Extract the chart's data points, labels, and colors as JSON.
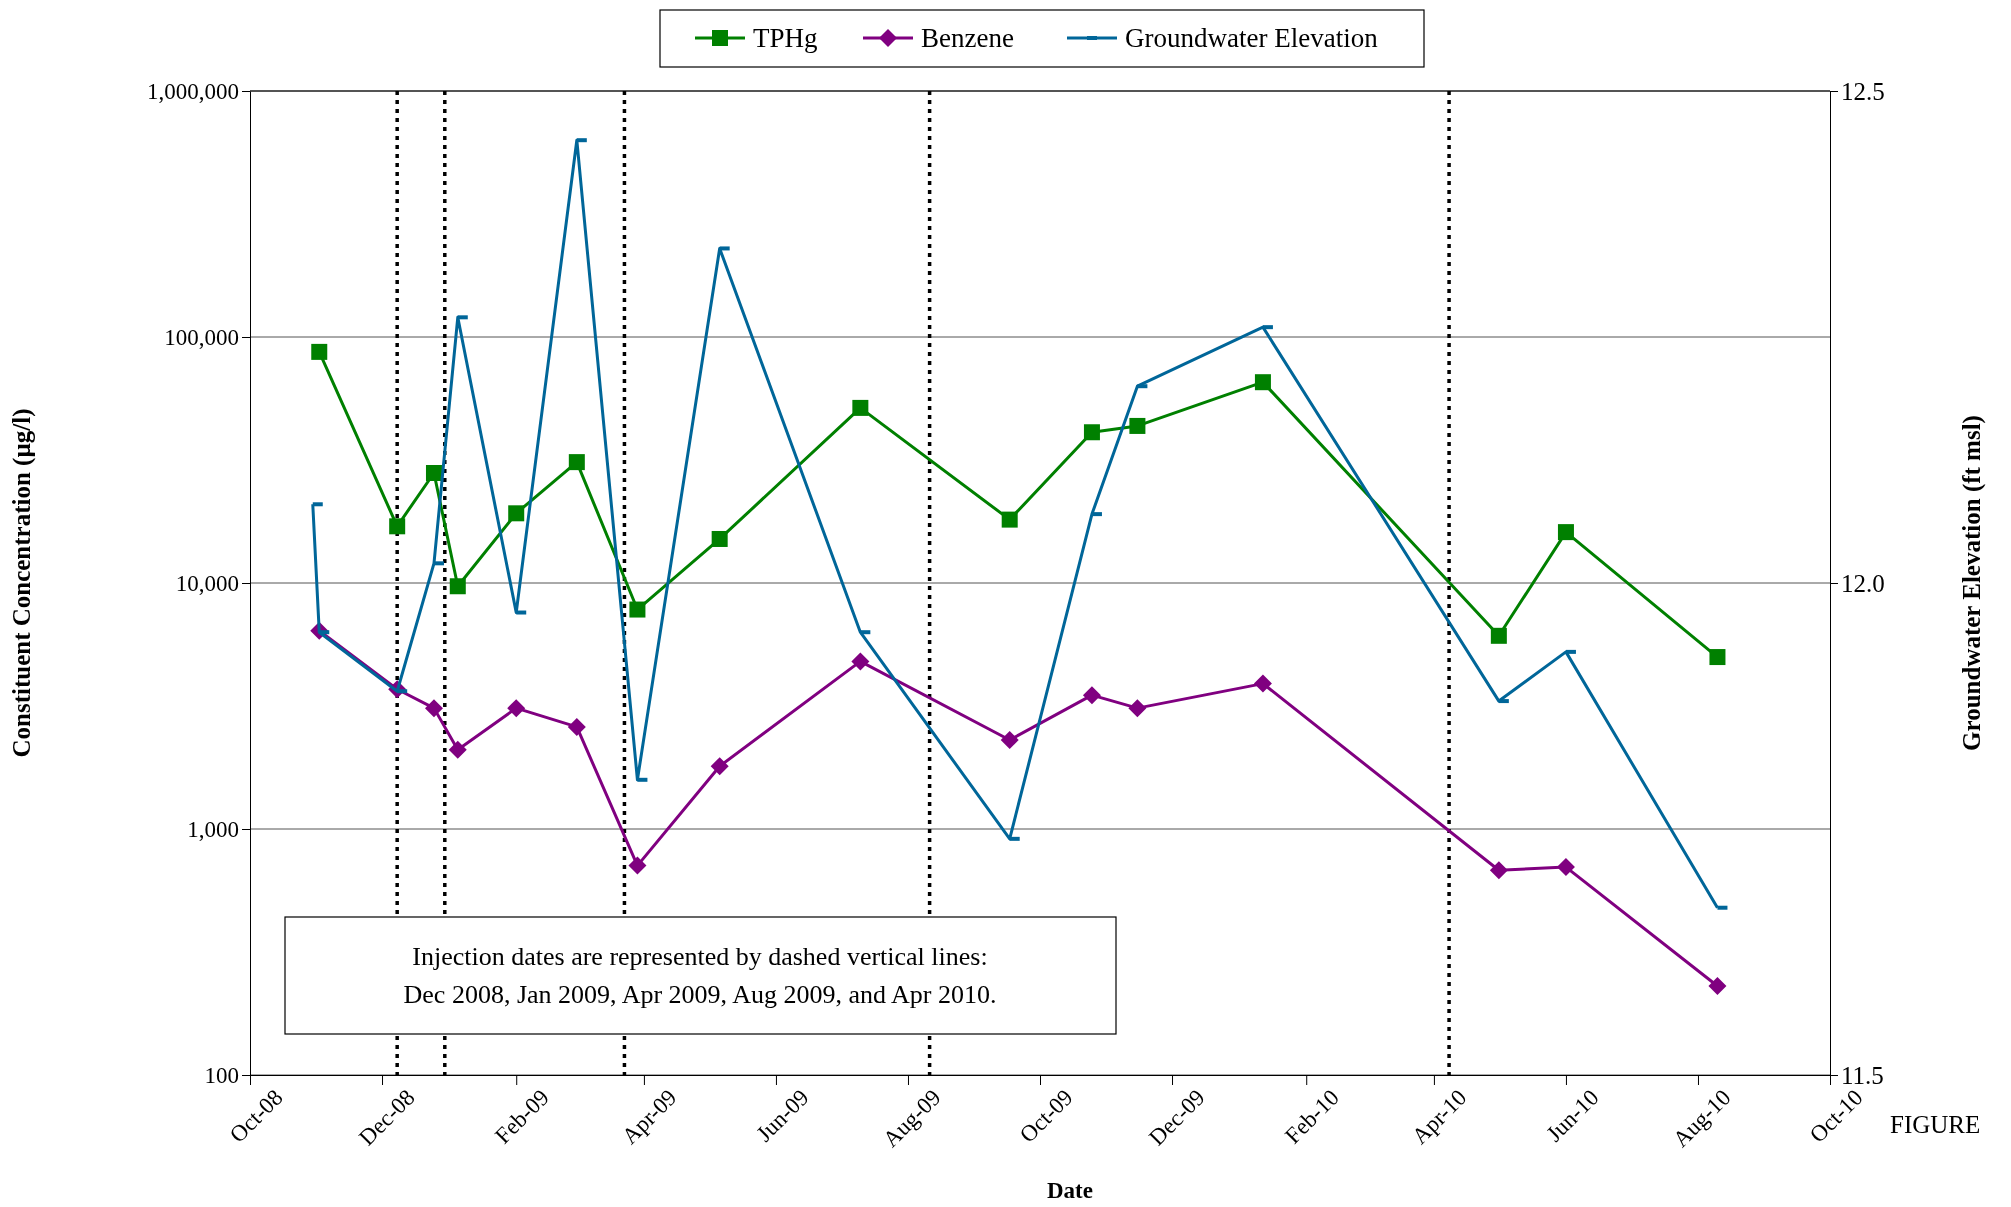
{
  "chart_data": {
    "type": "line",
    "xlabel": "Date",
    "ylabel": "Constituent Concentration (µg/l)",
    "y2label": "Groundwater Elevation (ft msl)",
    "annotations": [
      "Injection dates are represented by dashed vertical lines:\nDec 2008, Jan 2009, Apr 2009, Aug 2009, and Apr 2010.",
      "FIGURE"
    ],
    "log": "y",
    "grid": "y",
    "legend": "top",
    "line_style": "solid",
    "xlim": [
      "2008-10-01",
      "2010-10-01"
    ],
    "xticks": [
      {
        "value": "2008-10-01",
        "label": "Oct-08"
      },
      {
        "value": "2008-12-01",
        "label": "Dec-08"
      },
      {
        "value": "2009-02-01",
        "label": "Feb-09"
      },
      {
        "value": "2009-04-01",
        "label": "Apr-09"
      },
      {
        "value": "2009-06-01",
        "label": "Jun-09"
      },
      {
        "value": "2009-08-01",
        "label": "Aug-09"
      },
      {
        "value": "2009-10-01",
        "label": "Oct-09"
      },
      {
        "value": "2009-12-01",
        "label": "Dec-09"
      },
      {
        "value": "2010-02-01",
        "label": "Feb-10"
      },
      {
        "value": "2010-04-01",
        "label": "Apr-10"
      },
      {
        "value": "2010-06-01",
        "label": "Jun-10"
      },
      {
        "value": "2010-08-01",
        "label": "Aug-10"
      },
      {
        "value": "2010-10-01",
        "label": "Oct-10"
      }
    ],
    "ylim": [
      100,
      1000000
    ],
    "yticks": [
      100,
      {
        "value": 1000,
        "label": "1,000"
      },
      {
        "value": 10000,
        "label": "10,000"
      },
      {
        "value": 100000,
        "label": "100,000"
      },
      {
        "value": 1000000,
        "label": "1,000,000"
      }
    ],
    "y2lim": [
      11.5,
      12.5
    ],
    "y2ticks": [
      11.5,
      {
        "value": 12,
        "label": "12.0"
      },
      12.5
    ],
    "x": [
      "2008-11-02",
      "2008-12-08",
      "2008-12-25",
      "2009-01-05",
      "2009-02-01",
      "2009-03-01",
      "2009-03-29",
      "2009-05-06",
      "2009-07-10",
      "2009-09-17",
      "2009-10-25",
      "2009-11-15",
      "2010-01-12",
      "2010-05-01",
      "2010-06-01",
      "2010-08-10"
    ],
    "series": [
      {
        "name": "TPHg",
        "color": "#008000",
        "marker": "square",
        "values": [
          87000,
          17000,
          28000,
          9700,
          19200,
          31000,
          7800,
          15100,
          51500,
          18100,
          41000,
          43500,
          65500,
          6100,
          16100,
          5000
        ]
      },
      {
        "name": "Benzene",
        "color": "#800080",
        "marker": "diamond",
        "values": [
          6400,
          3700,
          3100,
          2100,
          3100,
          2600,
          710,
          1800,
          4800,
          2300,
          3500,
          3100,
          3900,
          680,
          700,
          230
        ]
      },
      {
        "name": "Groundwater Elevation",
        "color": "#006699",
        "marker": "square",
        "axis": "y2",
        "x": [
          "2008-10-30",
          "2008-11-02",
          "2008-12-08",
          "2008-12-25",
          "2009-01-05",
          "2009-02-01",
          "2009-03-01",
          "2009-03-29",
          "2009-05-06",
          "2009-07-10",
          "2009-09-17",
          "2009-10-25",
          "2009-11-15",
          "2010-01-12",
          "2010-05-01",
          "2010-06-01",
          "2010-08-10"
        ],
        "values": [
          12.08,
          11.95,
          11.89,
          12.02,
          12.27,
          11.97,
          12.45,
          11.8,
          12.34,
          11.95,
          11.74,
          12.07,
          12.2,
          12.26,
          11.88,
          11.93,
          11.67
        ]
      }
    ],
    "ref_lines": [
      {
        "axis": "x",
        "value": "2008-12-08",
        "line_style": "dotted",
        "color": "#000000"
      },
      {
        "axis": "x",
        "value": "2008-12-30",
        "line_style": "dotted",
        "color": "#000000"
      },
      {
        "axis": "x",
        "value": "2009-03-23",
        "line_style": "dotted",
        "color": "#000000"
      },
      {
        "axis": "x",
        "value": "2009-08-11",
        "line_style": "dotted",
        "color": "#000000"
      },
      {
        "axis": "x",
        "value": "2010-04-08",
        "line_style": "dotted",
        "color": "#000000"
      }
    ]
  }
}
